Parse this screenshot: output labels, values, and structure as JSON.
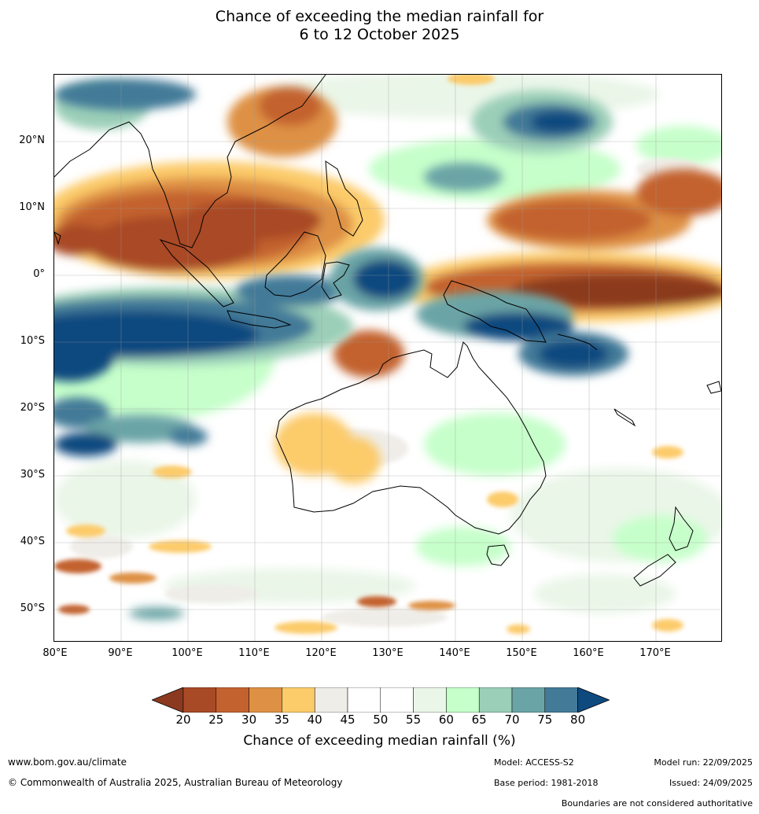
{
  "title_line1": "Chance of exceeding the median rainfall for",
  "title_line2": "6 to 12 October 2025",
  "map": {
    "lon_range": [
      80,
      180
    ],
    "lat_range": [
      -55,
      30
    ],
    "lat_ticks": [
      {
        "value": 20,
        "label": "20°N"
      },
      {
        "value": 10,
        "label": "10°N"
      },
      {
        "value": 0,
        "label": "0°"
      },
      {
        "value": -10,
        "label": "10°S"
      },
      {
        "value": -20,
        "label": "20°S"
      },
      {
        "value": -30,
        "label": "30°S"
      },
      {
        "value": -40,
        "label": "40°S"
      },
      {
        "value": -50,
        "label": "50°S"
      }
    ],
    "lon_ticks": [
      {
        "value": 80,
        "label": "80°E"
      },
      {
        "value": 90,
        "label": "90°E"
      },
      {
        "value": 100,
        "label": "100°E"
      },
      {
        "value": 110,
        "label": "110°E"
      },
      {
        "value": 120,
        "label": "120°E"
      },
      {
        "value": 130,
        "label": "130°E"
      },
      {
        "value": 140,
        "label": "140°E"
      },
      {
        "value": 150,
        "label": "150°E"
      },
      {
        "value": 160,
        "label": "160°E"
      },
      {
        "value": 170,
        "label": "170°E"
      }
    ]
  },
  "colorbar": {
    "ticks": [
      "20",
      "25",
      "30",
      "35",
      "40",
      "45",
      "50",
      "55",
      "60",
      "65",
      "70",
      "75",
      "80"
    ],
    "colors": [
      "#a94a27",
      "#c3622f",
      "#de9144",
      "#fccb6a",
      "#efede8",
      "#ffffff",
      "#ffffff",
      "#eaf6e8",
      "#c6ffca",
      "#9bcfb8",
      "#6ba4a6",
      "#427a98"
    ],
    "under_color": "#8b3a1f",
    "over_color": "#0f4a7f",
    "label": "Chance of exceeding median rainfall (%)"
  },
  "footer": {
    "url": "www.bom.gov.au/climate",
    "copyright": "© Commonwealth of Australia 2025, Australian Bureau of Meteorology",
    "model": "Model: ACCESS-S2",
    "base_period": "Base period: 1981-2018",
    "model_run": "Model run: 22/09/2025",
    "issued": "Issued: 24/09/2025",
    "disclaimer": "Boundaries are not considered authoritative"
  }
}
